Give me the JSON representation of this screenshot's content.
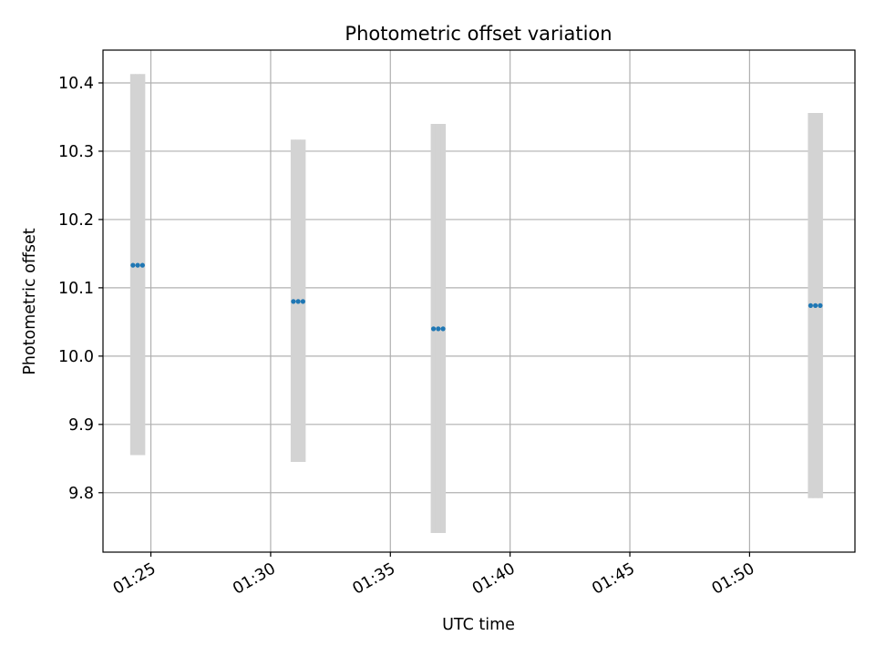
{
  "chart_data": {
    "type": "scatter",
    "title": "Photometric offset variation",
    "xlabel": "UTC time",
    "ylabel": "Photometric offset",
    "x_tick_labels": [
      "01:25",
      "01:30",
      "01:35",
      "01:40",
      "01:45",
      "01:50"
    ],
    "y_tick_labels": [
      "9.8",
      "9.9",
      "10.0",
      "10.1",
      "10.2",
      "10.3",
      "10.4"
    ],
    "x_ticks_minutes": [
      85,
      90,
      95,
      100,
      105,
      110
    ],
    "y_ticks": [
      9.8,
      9.9,
      10.0,
      10.1,
      10.2,
      10.3,
      10.4
    ],
    "xlim_minutes": [
      83.0,
      114.4
    ],
    "ylim": [
      9.713,
      10.448
    ],
    "grid": true,
    "errorbar_color": "#d3d3d3",
    "marker_color": "#1f77b4",
    "groups": [
      {
        "x_minutes": [
          84.25,
          84.45,
          84.65
        ],
        "y": [
          10.133,
          10.133,
          10.133
        ],
        "yerr_low": 9.855,
        "yerr_high": 10.413
      },
      {
        "x_minutes": [
          90.95,
          91.15,
          91.35
        ],
        "y": [
          10.08,
          10.08,
          10.08
        ],
        "yerr_low": 9.845,
        "yerr_high": 10.317
      },
      {
        "x_minutes": [
          96.8,
          97.0,
          97.2
        ],
        "y": [
          10.04,
          10.04,
          10.04
        ],
        "yerr_low": 9.741,
        "yerr_high": 10.34
      },
      {
        "x_minutes": [
          112.55,
          112.75,
          112.95
        ],
        "y": [
          10.074,
          10.074,
          10.074
        ],
        "yerr_low": 9.792,
        "yerr_high": 10.356
      }
    ]
  }
}
